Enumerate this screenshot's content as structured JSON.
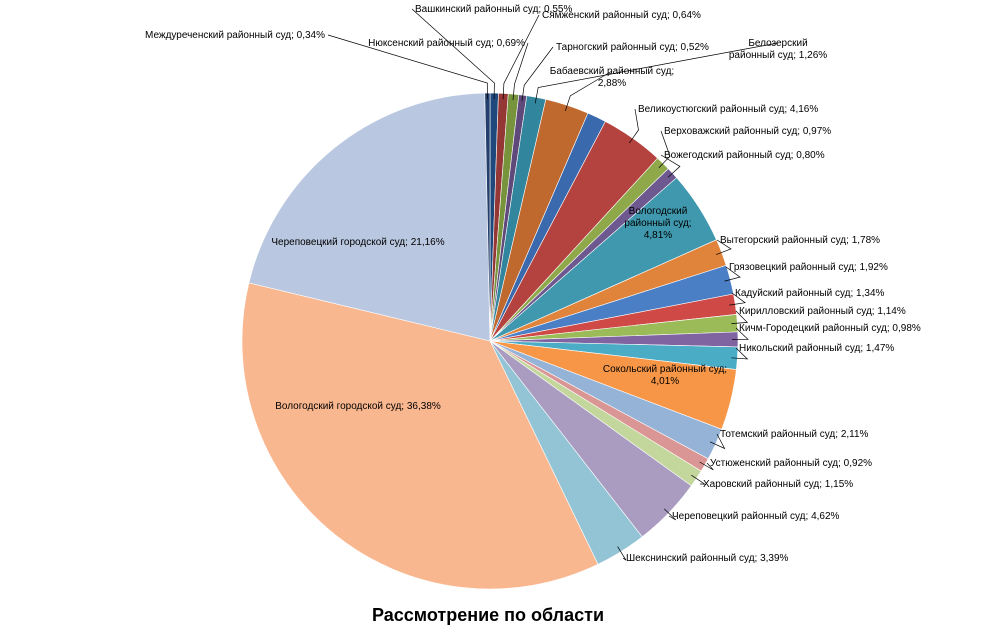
{
  "chart_data": {
    "type": "pie",
    "title": "Рассмотрение по области",
    "legend": "none",
    "slices": [
      {
        "label": "Вашкинский районный суд; 0,55%",
        "value": 0.55,
        "color": "#1f497d"
      },
      {
        "label": "Сямженский районный суд; 0,64%",
        "value": 0.64,
        "color": "#953734"
      },
      {
        "label": "Нюксенский районный суд; 0,69%",
        "value": 0.69,
        "color": "#77933c"
      },
      {
        "label": "Тарногский районный суд; 0,52%",
        "value": 0.52,
        "color": "#5f497a"
      },
      {
        "label": "Белозерский районный суд; 1,26%",
        "value": 1.26,
        "color": "#31859c"
      },
      {
        "label": "Бабаевский районный суд; 2,88%",
        "value": 2.88,
        "color": "#c0692e"
      },
      {
        "label": "Белозерский районный суд; 1,26%",
        "value": 1.26,
        "color": "#3a6aad"
      },
      {
        "label": "Великоустюгский районный суд; 4,16%",
        "value": 4.16,
        "color": "#b4423f"
      },
      {
        "label": "Верховажский районный суд; 0,97%",
        "value": 0.97,
        "color": "#8ea84a"
      },
      {
        "label": "Вожегодский районный суд; 0,80%",
        "value": 0.8,
        "color": "#6e5890"
      },
      {
        "label": "Вологодский районный суд; 4,81%",
        "value": 4.81,
        "color": "#3f98ad"
      },
      {
        "label": "Вытегорский районный суд; 1,78%",
        "value": 1.78,
        "color": "#e0843c"
      },
      {
        "label": "Грязовецкий районный суд; 1,92%",
        "value": 1.92,
        "color": "#4a7ec5"
      },
      {
        "label": "Кадуйский районный суд; 1,34%",
        "value": 1.34,
        "color": "#cf4a46"
      },
      {
        "label": "Кирилловский районный суд; 1,14%",
        "value": 1.14,
        "color": "#9bbb59"
      },
      {
        "label": "Кичм-Городецкий районный суд; 0,98%",
        "value": 0.98,
        "color": "#8064a2"
      },
      {
        "label": "Никольский районный суд; 1,47%",
        "value": 1.47,
        "color": "#4bacc6"
      },
      {
        "label": "Сокольский районный суд; 4,01%",
        "value": 4.01,
        "color": "#f79646"
      },
      {
        "label": "Тотемский районный суд; 2,11%",
        "value": 2.11,
        "color": "#95b3d7"
      },
      {
        "label": "Устюженский районный суд; 0,92%",
        "value": 0.92,
        "color": "#d99694"
      },
      {
        "label": "Харовский районный суд; 1,15%",
        "value": 1.15,
        "color": "#c3d69b"
      },
      {
        "label": "Череповецкий районный суд; 4,62%",
        "value": 4.62,
        "color": "#a99cc0"
      },
      {
        "label": "Шекснинский районный суд; 3,39%",
        "value": 3.39,
        "color": "#92c4d5"
      },
      {
        "label": "Вологодский городской суд; 36,38%",
        "value": 36.38,
        "color": "#f9b790"
      },
      {
        "label": "Череповецкий городской суд; 21,16%",
        "value": 21.16,
        "color": "#b9c7e0"
      },
      {
        "label": "Междуреченский районный суд; 0,34%",
        "value": 0.34,
        "color": "#243f6b"
      }
    ]
  }
}
